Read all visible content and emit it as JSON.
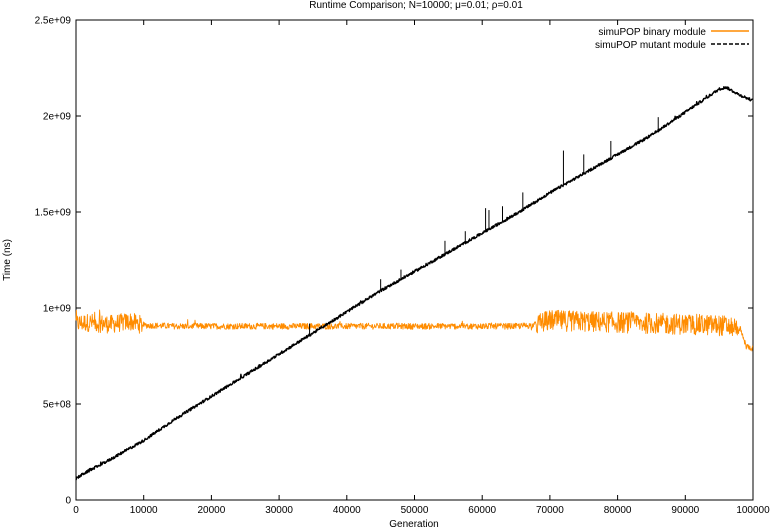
{
  "chart_data": {
    "type": "line",
    "title": "Runtime Comparison; N=10000; μ=0.01; ρ=0.01",
    "xlabel": "Generation",
    "ylabel": "Time (ns)",
    "xlim": [
      0,
      100000
    ],
    "ylim": [
      0,
      2500000000
    ],
    "x_ticks": [
      0,
      10000,
      20000,
      30000,
      40000,
      50000,
      60000,
      70000,
      80000,
      90000,
      100000
    ],
    "x_tick_labels": [
      "0",
      "10000",
      "20000",
      "30000",
      "40000",
      "50000",
      "60000",
      "70000",
      "80000",
      "90000",
      "100000"
    ],
    "y_ticks": [
      0,
      500000000,
      1000000000,
      1500000000,
      2000000000,
      2500000000
    ],
    "y_tick_labels": [
      "0",
      "5e+08",
      "1e+09",
      "1.5e+09",
      "2e+09",
      "2.5e+09"
    ],
    "grid": false,
    "legend_position": "top-right",
    "series": [
      {
        "name": "simuPOP binary module",
        "color": "#ff8c00",
        "style": "solid",
        "x": [
          0,
          2000,
          5000,
          8000,
          10000,
          15000,
          20000,
          25000,
          30000,
          35000,
          40000,
          45000,
          50000,
          55000,
          60000,
          65000,
          67500,
          70000,
          75000,
          80000,
          85000,
          90000,
          95000,
          98000,
          99000,
          100000
        ],
        "y": [
          920000000,
          925000000,
          915000000,
          930000000,
          910000000,
          905000000,
          905000000,
          905000000,
          905000000,
          905000000,
          905000000,
          905000000,
          905000000,
          905000000,
          905000000,
          905000000,
          910000000,
          935000000,
          930000000,
          925000000,
          920000000,
          915000000,
          910000000,
          900000000,
          800000000,
          790000000
        ]
      },
      {
        "name": "simuPOP mutant module",
        "color": "#000000",
        "style": "dashed",
        "x": [
          0,
          1000,
          5000,
          10000,
          15000,
          20000,
          25000,
          30000,
          35000,
          40000,
          45000,
          50000,
          55000,
          60000,
          65000,
          70000,
          75000,
          80000,
          85000,
          90000,
          95000,
          96000,
          97000,
          98000,
          100000
        ],
        "y": [
          110000000,
          135000000,
          210000000,
          310000000,
          430000000,
          540000000,
          650000000,
          760000000,
          870000000,
          980000000,
          1090000000,
          1190000000,
          1290000000,
          1390000000,
          1490000000,
          1600000000,
          1700000000,
          1800000000,
          1900000000,
          2020000000,
          2140000000,
          2150000000,
          2130000000,
          2110000000,
          2080000000
        ]
      }
    ]
  }
}
